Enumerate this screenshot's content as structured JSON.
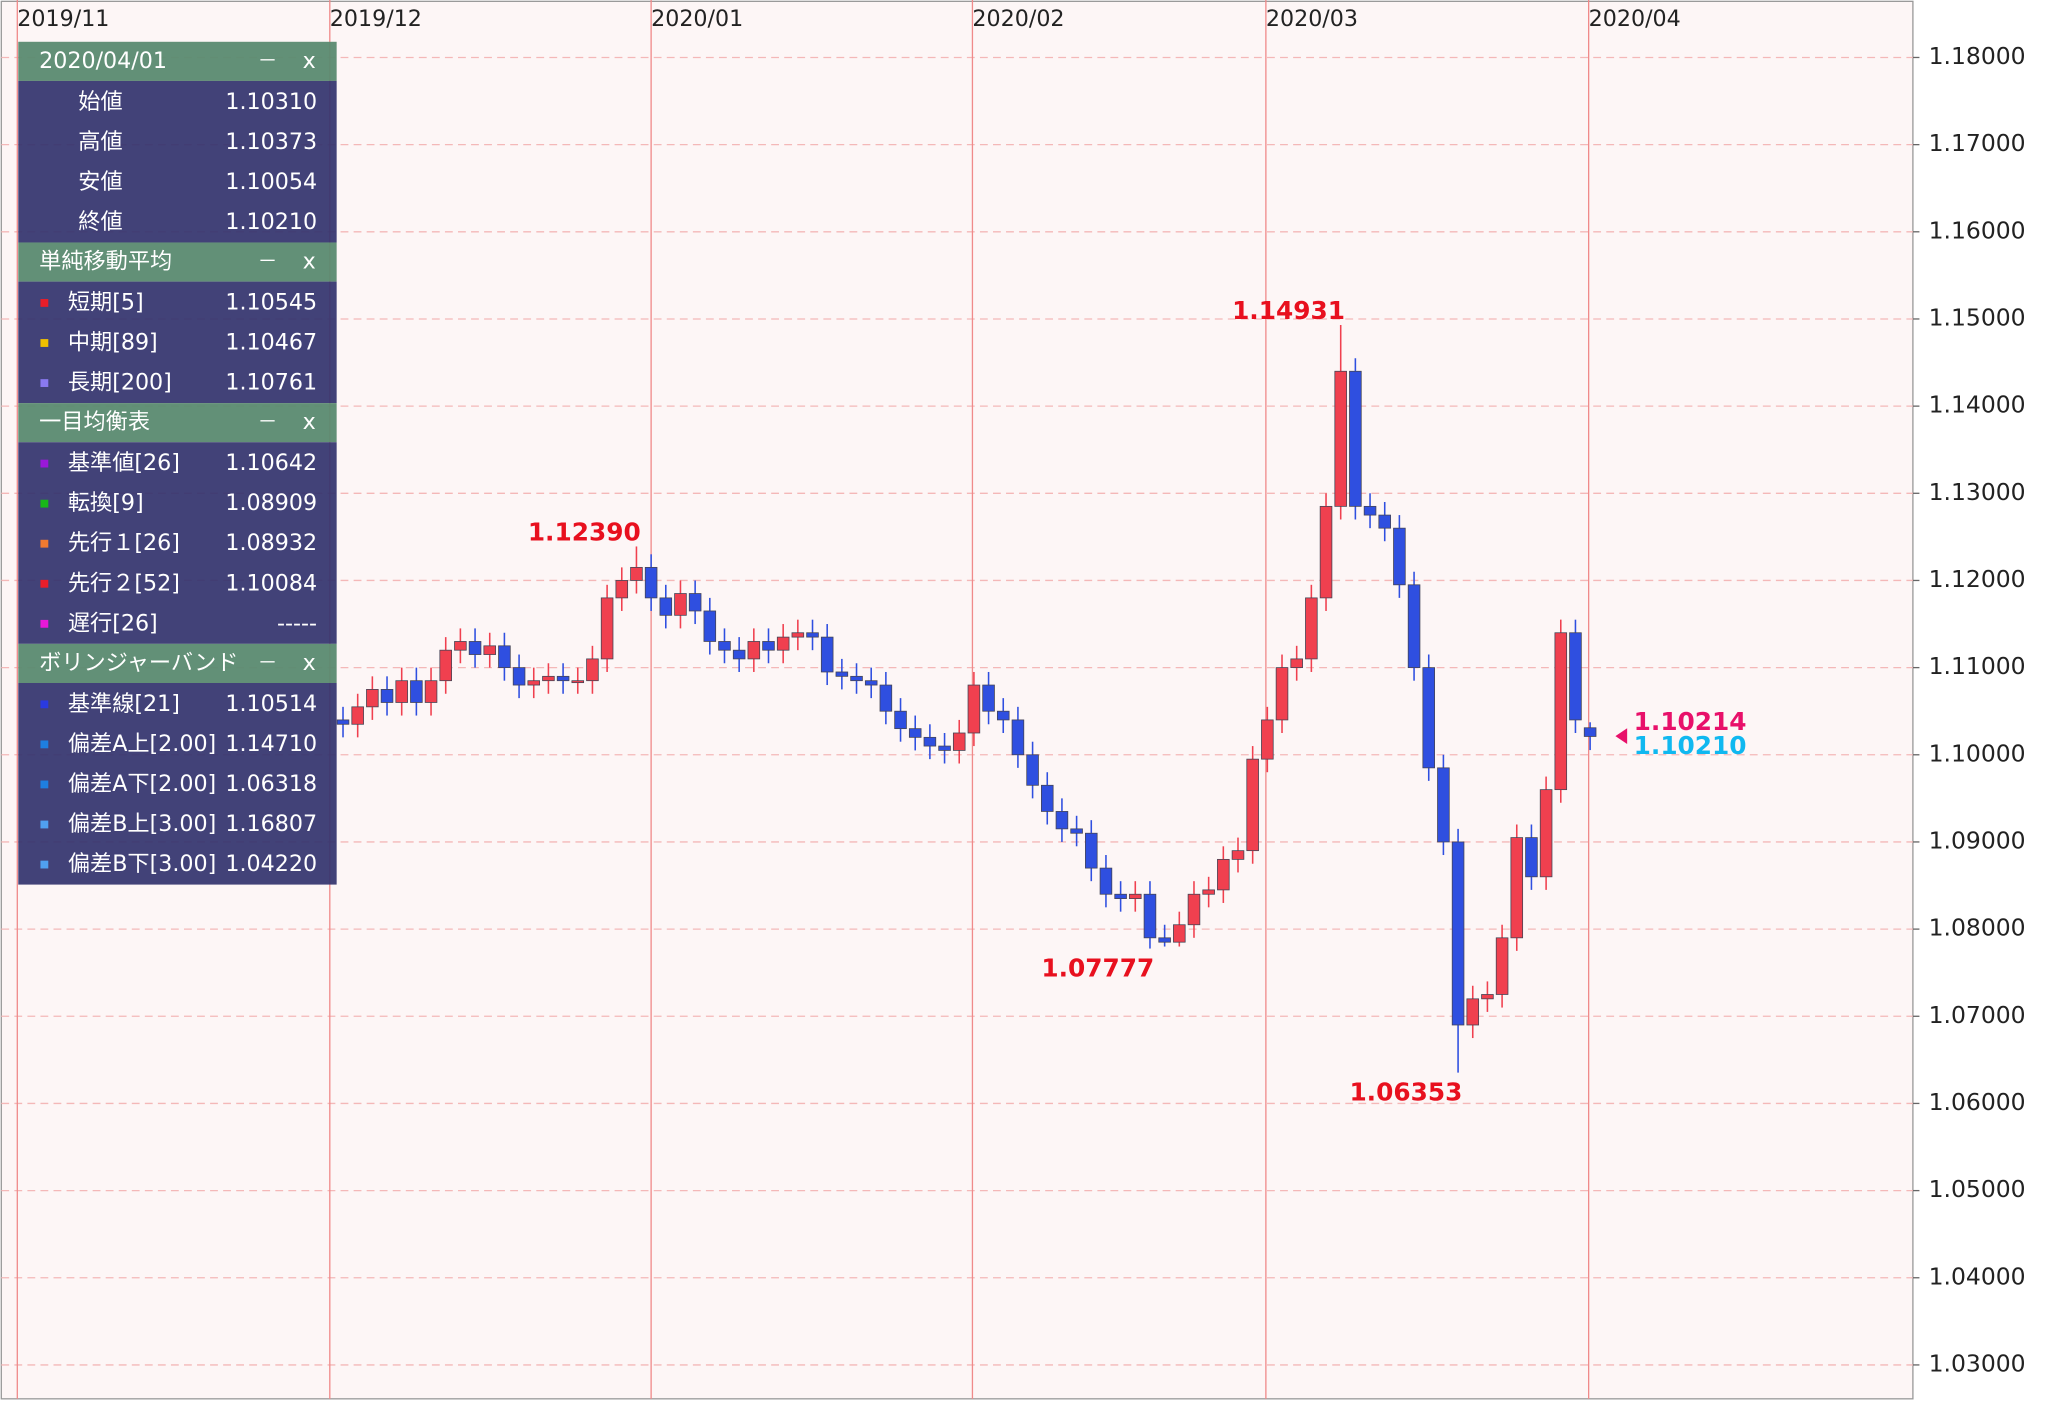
{
  "chart_data": {
    "type": "candlestick",
    "xlim": [
      -23.29,
      107.0
    ],
    "xticks": [
      {
        "value": -22.2,
        "label": "2019/11"
      },
      {
        "value": -0.9,
        "label": "2019/12"
      },
      {
        "value": 21,
        "label": "2020/01"
      },
      {
        "value": 42.9,
        "label": "2020/02"
      },
      {
        "value": 62.9,
        "label": "2020/03"
      },
      {
        "value": 84.9,
        "label": "2020/04"
      }
    ],
    "ylim": [
      1.02611,
      1.18659
    ],
    "yticks": [
      {
        "value": 1.03,
        "label": "1.03000"
      },
      {
        "value": 1.04,
        "label": "1.04000"
      },
      {
        "value": 1.05,
        "label": "1.05000"
      },
      {
        "value": 1.06,
        "label": "1.06000"
      },
      {
        "value": 1.07,
        "label": "1.07000"
      },
      {
        "value": 1.08,
        "label": "1.08000"
      },
      {
        "value": 1.09,
        "label": "1.09000"
      },
      {
        "value": 1.1,
        "label": "1.10000"
      },
      {
        "value": 1.11,
        "label": "1.11000"
      },
      {
        "value": 1.12,
        "label": "1.12000"
      },
      {
        "value": 1.13,
        "label": "1.13000"
      },
      {
        "value": 1.14,
        "label": "1.14000"
      },
      {
        "value": 1.15,
        "label": "1.15000"
      },
      {
        "value": 1.16,
        "label": "1.16000"
      },
      {
        "value": 1.17,
        "label": "1.17000"
      },
      {
        "value": 1.18,
        "label": "1.18000"
      }
    ],
    "grid": true,
    "up_color": "#f0404f",
    "down_color": "#2f4fe0",
    "open": [
      1.104,
      1.1035,
      1.1055,
      1.1075,
      1.106,
      1.1085,
      1.106,
      1.1085,
      1.112,
      1.113,
      1.1115,
      1.1125,
      1.11,
      1.108,
      1.1085,
      1.109,
      1.1085,
      1.1085,
      1.111,
      1.118,
      1.12,
      1.1215,
      1.118,
      1.116,
      1.1185,
      1.1165,
      1.113,
      1.112,
      1.111,
      1.113,
      1.112,
      1.1135,
      1.114,
      1.1135,
      1.1095,
      1.109,
      1.1085,
      1.108,
      1.105,
      1.103,
      1.102,
      1.101,
      1.1005,
      1.1025,
      1.108,
      1.105,
      1.104,
      1.1,
      1.0965,
      1.0935,
      1.0915,
      1.091,
      1.087,
      1.084,
      1.0835,
      1.084,
      1.079,
      1.0785,
      1.0805,
      1.084,
      1.0845,
      1.088,
      1.089,
      1.0995,
      1.104,
      1.11,
      1.111,
      1.118,
      1.1285,
      1.144,
      1.1285,
      1.1275,
      1.126,
      1.1195,
      1.11,
      1.0985,
      1.09,
      1.069,
      1.072,
      1.0725,
      1.079,
      1.0905,
      1.086,
      1.096,
      1.114,
      1.1031
    ],
    "high": [
      1.1055,
      1.107,
      1.109,
      1.109,
      1.11,
      1.11,
      1.11,
      1.1135,
      1.1145,
      1.1145,
      1.114,
      1.114,
      1.1115,
      1.11,
      1.1105,
      1.1105,
      1.11,
      1.1125,
      1.1195,
      1.1215,
      1.1239,
      1.123,
      1.1195,
      1.12,
      1.12,
      1.118,
      1.1145,
      1.1135,
      1.1145,
      1.1145,
      1.115,
      1.1155,
      1.1155,
      1.115,
      1.111,
      1.1105,
      1.11,
      1.1095,
      1.1065,
      1.1045,
      1.1035,
      1.1025,
      1.104,
      1.1095,
      1.1095,
      1.1065,
      1.1055,
      1.1015,
      1.098,
      1.095,
      1.093,
      1.0925,
      1.0885,
      1.0855,
      1.0855,
      1.0855,
      1.0805,
      1.082,
      1.0855,
      1.086,
      1.0895,
      1.0905,
      1.101,
      1.1055,
      1.1115,
      1.1125,
      1.1195,
      1.13,
      1.14931,
      1.1455,
      1.13,
      1.129,
      1.1275,
      1.121,
      1.1115,
      1.1,
      1.0915,
      1.0735,
      1.074,
      1.0805,
      1.092,
      1.092,
      1.0975,
      1.1155,
      1.1155,
      1.10373
    ],
    "low": [
      1.102,
      1.102,
      1.104,
      1.1045,
      1.1045,
      1.1045,
      1.1045,
      1.107,
      1.1105,
      1.11,
      1.11,
      1.1085,
      1.1065,
      1.1065,
      1.107,
      1.107,
      1.107,
      1.107,
      1.1095,
      1.1165,
      1.1185,
      1.1165,
      1.1145,
      1.1145,
      1.115,
      1.1115,
      1.1105,
      1.1095,
      1.1095,
      1.1105,
      1.1105,
      1.112,
      1.112,
      1.108,
      1.1075,
      1.107,
      1.1065,
      1.1035,
      1.1015,
      1.1005,
      1.0995,
      1.099,
      1.099,
      1.101,
      1.1035,
      1.1025,
      1.0985,
      1.095,
      1.092,
      1.09,
      1.0895,
      1.0855,
      1.0825,
      1.082,
      1.082,
      1.07777,
      1.078,
      1.078,
      1.079,
      1.0825,
      1.083,
      1.0865,
      1.0875,
      1.098,
      1.1025,
      1.1085,
      1.1095,
      1.1165,
      1.127,
      1.127,
      1.126,
      1.1245,
      1.118,
      1.1085,
      1.097,
      1.0885,
      1.06353,
      1.0675,
      1.0705,
      1.071,
      1.0775,
      1.0845,
      1.0845,
      1.0945,
      1.1025,
      1.10054
    ],
    "close": [
      1.1035,
      1.1055,
      1.1075,
      1.106,
      1.1085,
      1.106,
      1.1085,
      1.112,
      1.113,
      1.1115,
      1.1125,
      1.11,
      1.108,
      1.1085,
      1.109,
      1.1085,
      1.1085,
      1.111,
      1.118,
      1.12,
      1.1215,
      1.118,
      1.116,
      1.1185,
      1.1165,
      1.113,
      1.112,
      1.111,
      1.113,
      1.112,
      1.1135,
      1.114,
      1.1135,
      1.1095,
      1.109,
      1.1085,
      1.108,
      1.105,
      1.103,
      1.102,
      1.101,
      1.1005,
      1.1025,
      1.108,
      1.105,
      1.104,
      1.1,
      1.0965,
      1.0935,
      1.0915,
      1.091,
      1.087,
      1.084,
      1.0835,
      1.084,
      1.079,
      1.0785,
      1.0805,
      1.084,
      1.0845,
      1.088,
      1.089,
      1.0995,
      1.104,
      1.11,
      1.111,
      1.118,
      1.1285,
      1.144,
      1.1285,
      1.1275,
      1.126,
      1.1195,
      1.11,
      1.0985,
      1.09,
      1.069,
      1.072,
      1.0725,
      1.079,
      1.0905,
      1.086,
      1.096,
      1.114,
      1.104,
      1.1021
    ],
    "annotations": [
      {
        "text": "1.12390",
        "x": 20,
        "y": 1.1239,
        "color": "#e8101e"
      },
      {
        "text": "1.14931",
        "x": 68,
        "y": 1.14931,
        "color": "#e8101e"
      },
      {
        "text": "1.07777",
        "x": 55,
        "y": 1.07777,
        "color": "#e8101e"
      },
      {
        "text": "1.06353",
        "x": 76,
        "y": 1.06353,
        "color": "#e8101e"
      }
    ],
    "last_prices": [
      {
        "text": "1.10214",
        "y": 1.10214,
        "color": "#e8106a"
      },
      {
        "text": "1.10210",
        "y": 1.1021,
        "color": "#10b8f0"
      }
    ]
  },
  "info_panel": {
    "buttons": [
      "－",
      "x"
    ],
    "sections": [
      {
        "title": "2020/04/01",
        "rows": [
          {
            "label": "始値",
            "value": "1.10310"
          },
          {
            "label": "高値",
            "value": "1.10373"
          },
          {
            "label": "安値",
            "value": "1.10054"
          },
          {
            "label": "終値",
            "value": "1.10210"
          }
        ]
      },
      {
        "title": "単純移動平均",
        "rows": [
          {
            "label": "短期[5]",
            "value": "1.10545",
            "color": "#e81e2a"
          },
          {
            "label": "中期[89]",
            "value": "1.10467",
            "color": "#f0c000"
          },
          {
            "label": "長期[200]",
            "value": "1.10761",
            "color": "#8a7af0"
          }
        ]
      },
      {
        "title": "一目均衡表",
        "rows": [
          {
            "label": "基準値[26]",
            "value": "1.10642",
            "color": "#9a18d8"
          },
          {
            "label": "転換[9]",
            "value": "1.08909",
            "color": "#18b818"
          },
          {
            "label": "先行１[26]",
            "value": "1.08932",
            "color": "#f07a30"
          },
          {
            "label": "先行２[52]",
            "value": "1.10084",
            "color": "#e81e2a"
          },
          {
            "label": "遅行[26]",
            "value": "-----",
            "color": "#e818d8"
          }
        ]
      },
      {
        "title": "ボリンジャーバンド",
        "rows": [
          {
            "label": "基準線[21]",
            "value": "1.10514",
            "color": "#2a3ae0"
          },
          {
            "label": "偏差A上[2.00]",
            "value": "1.14710",
            "color": "#1e7fe0"
          },
          {
            "label": "偏差A下[2.00]",
            "value": "1.06318",
            "color": "#1e7fe0"
          },
          {
            "label": "偏差B上[3.00]",
            "value": "1.16807",
            "color": "#50a0f0"
          },
          {
            "label": "偏差B下[3.00]",
            "value": "1.04220",
            "color": "#50a0f0"
          }
        ]
      }
    ]
  }
}
